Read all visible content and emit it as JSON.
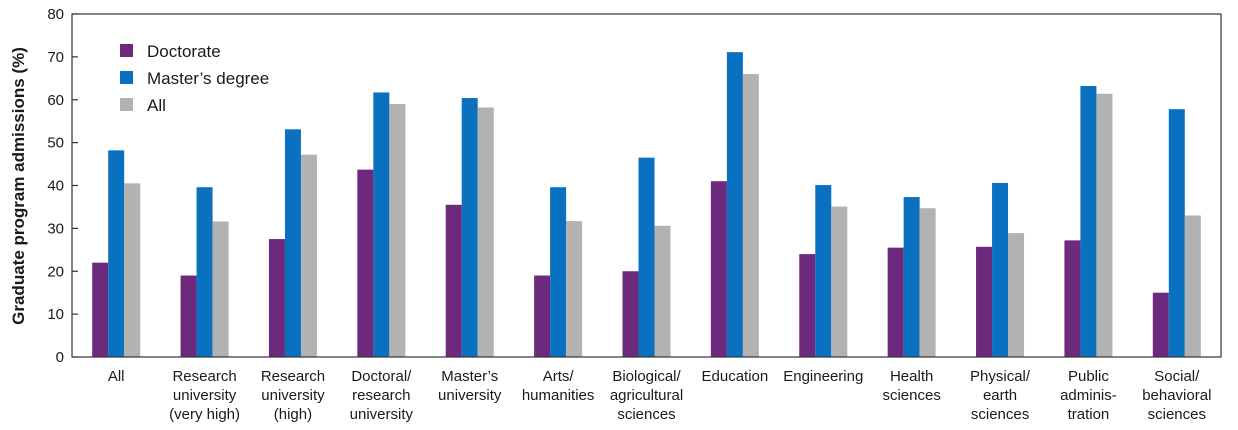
{
  "chart_data": {
    "type": "bar",
    "title": "",
    "xlabel": "",
    "ylabel": "Graduate program admissions (%)",
    "ylim": [
      0,
      80
    ],
    "yticks": [
      "0",
      "10",
      "20",
      "30",
      "40",
      "50",
      "60",
      "70",
      "80"
    ],
    "grid": false,
    "legend_position": "top-left",
    "categories": [
      [
        "All"
      ],
      [
        "Research",
        "university",
        "(very high)"
      ],
      [
        "Research",
        "university",
        "(high)"
      ],
      [
        "Doctoral/",
        "research",
        "university"
      ],
      [
        "Master’s",
        "university"
      ],
      [
        "Arts/",
        "humanities"
      ],
      [
        "Biological/",
        "agricultural",
        "sciences"
      ],
      [
        "Education"
      ],
      [
        "Engineering"
      ],
      [
        "Health",
        "sciences"
      ],
      [
        "Physical/",
        "earth",
        "sciences"
      ],
      [
        "Public",
        "adminis-",
        "tration"
      ],
      [
        "Social/",
        "behavioral",
        "sciences"
      ]
    ],
    "series": [
      {
        "name": "Doctorate",
        "color": "#6d2a7c",
        "values": [
          22,
          19,
          27.5,
          43.7,
          35.5,
          19,
          20,
          41,
          24,
          25.5,
          25.7,
          27.2,
          15
        ]
      },
      {
        "name": "Master’s degree",
        "color": "#0a70c0",
        "values": [
          48.2,
          39.6,
          53.1,
          61.7,
          60.4,
          39.6,
          46.5,
          71.1,
          40.1,
          37.3,
          40.6,
          63.2,
          57.8
        ]
      },
      {
        "name": "All",
        "color": "#b2b2b2",
        "values": [
          40.5,
          31.6,
          47.2,
          59,
          58.2,
          31.7,
          30.6,
          66,
          35.1,
          34.7,
          28.9,
          61.4,
          33
        ]
      }
    ]
  }
}
